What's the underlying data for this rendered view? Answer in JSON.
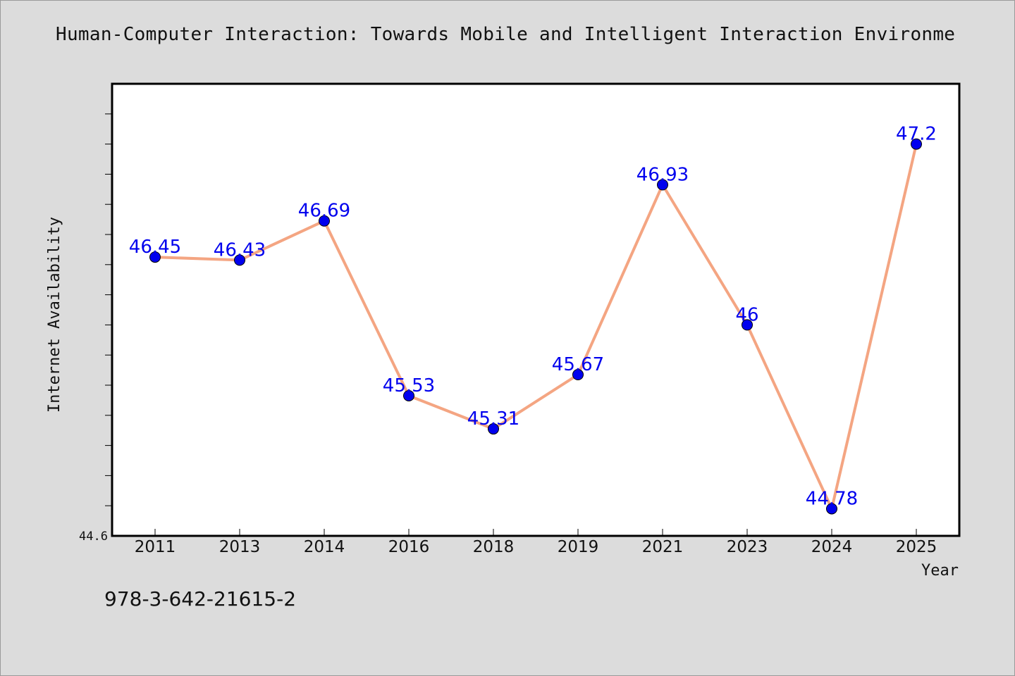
{
  "title": "Human-Computer Interaction: Towards Mobile and Intelligent Interaction Environme",
  "footer_text": "978-3-642-21615-2",
  "colors": {
    "background": "#dcdcdc",
    "plot_background": "#ffffff",
    "line": "#f4a582",
    "marker": "#0000ee",
    "data_label": "#0000ee"
  },
  "chart_data": {
    "type": "line",
    "title": "Human-Computer Interaction: Towards Mobile and Intelligent Interaction Environme",
    "xlabel": "Year",
    "ylabel": "Internet Availability",
    "categories": [
      "2011",
      "2013",
      "2014",
      "2016",
      "2018",
      "2019",
      "2021",
      "2023",
      "2024",
      "2025"
    ],
    "series": [
      {
        "values": [
          46.45,
          46.43,
          46.69,
          45.53,
          45.31,
          45.67,
          46.93,
          46,
          44.78,
          47.2
        ],
        "data_labels": [
          "46.45",
          "46.43",
          "46.69",
          "45.53",
          "45.31",
          "45.67",
          "46.93",
          "46",
          "44.78",
          "47.2"
        ]
      }
    ],
    "ylim": [
      44.6,
      47.6
    ],
    "y_tick_labels": [
      "44.6"
    ],
    "minor_tick_step": 0.2,
    "grid": false,
    "legend": "none"
  }
}
